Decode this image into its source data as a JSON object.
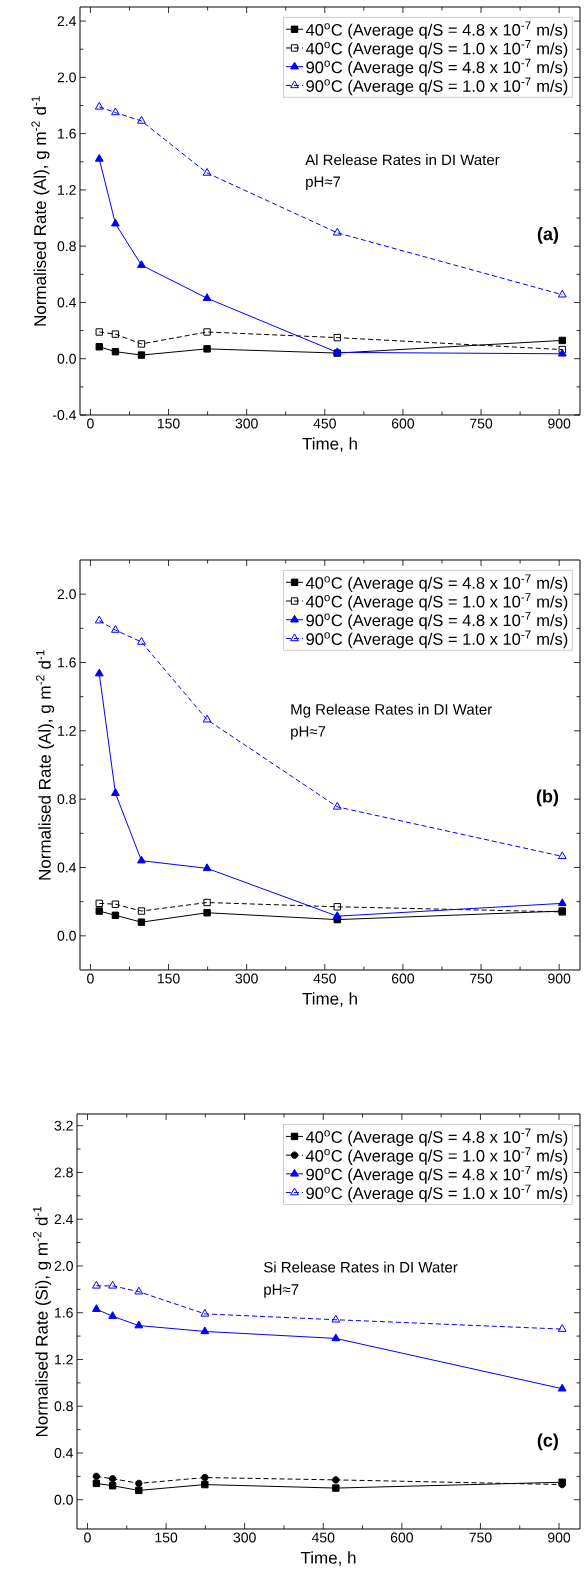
{
  "chart_data": [
    {
      "type": "line",
      "xlabel": "Time, h",
      "ylabel": "Normalised Rate (Al), g m$^{-2}$ d$^{-1}$",
      "xlim": [
        -20,
        940
      ],
      "ylim": [
        -0.4,
        2.5
      ],
      "xticks": [
        0,
        150,
        300,
        450,
        600,
        750,
        900
      ],
      "yticks": [
        {
          "value": -0.4,
          "label": "-0.4"
        },
        {
          "value": 0,
          "label": "0.0"
        },
        {
          "value": 0.4,
          "label": "0.4"
        },
        {
          "value": 0.8,
          "label": "0.8"
        },
        {
          "value": 1.2,
          "label": "1.2"
        },
        {
          "value": 1.6,
          "label": "1.6"
        },
        {
          "value": 2.0,
          "label": "2.0"
        },
        {
          "value": 2.4,
          "label": "2.4"
        }
      ],
      "x": [
        17,
        48,
        98,
        224,
        474,
        906
      ],
      "legend": "top right",
      "grid": false,
      "annotations": [
        "Al Release Rates in DI Water",
        "pH≈7",
        "(a)"
      ],
      "series": [
        {
          "name": "40$^{o}$C (Average q/S = 4.8 x 10$^{-7}$ m/s)",
          "color": "#000000",
          "marker": "square",
          "line_style": "solid",
          "values": [
            0.085,
            0.05,
            0.026,
            0.07,
            0.04,
            0.13
          ]
        },
        {
          "name": "40$^{o}$C (Average q/S = 1.0 x 10$^{-7}$ m/s)",
          "color": "#000000",
          "marker": "square",
          "line_style": "dashed",
          "values": [
            0.19,
            0.175,
            0.105,
            0.19,
            0.15,
            0.065
          ]
        },
        {
          "name": "90$^{o}$C (Average q/S = 4.8 x 10$^{-7}$ m/s)",
          "color": "#0000ff",
          "marker": "triangle",
          "line_style": "solid",
          "values": [
            1.42,
            0.96,
            0.665,
            0.43,
            0.045,
            0.035
          ]
        },
        {
          "name": "90$^{o}$C (Average q/S = 1.0 x 10$^{-7}$ m/s)",
          "color": "#0000ff",
          "marker": "triangle",
          "line_style": "dashed",
          "values": [
            1.79,
            1.75,
            1.69,
            1.32,
            0.895,
            0.455
          ]
        }
      ]
    },
    {
      "type": "line",
      "xlabel": "Time, h",
      "ylabel": "Normalised Rate (Al), g m$^{-2}$ d$^{-1}$",
      "xlim": [
        -20,
        940
      ],
      "ylim": [
        -0.2,
        2.2
      ],
      "xticks": [
        0,
        150,
        300,
        450,
        600,
        750,
        900
      ],
      "yticks": [
        {
          "value": 0,
          "label": "0.0"
        },
        {
          "value": 0.4,
          "label": "0.4"
        },
        {
          "value": 0.8,
          "label": "0.8"
        },
        {
          "value": 1.2,
          "label": "1.2"
        },
        {
          "value": 1.6,
          "label": "1.6"
        },
        {
          "value": 2.0,
          "label": "2.0"
        }
      ],
      "x": [
        17,
        48,
        98,
        224,
        474,
        906
      ],
      "legend": "top right",
      "grid": false,
      "annotations": [
        "Mg Release Rates in DI Water",
        "pH≈7",
        "(b)"
      ],
      "series": [
        {
          "name": "40$^{o}$C (Average q/S = 4.8 x 10$^{-7}$ m/s)",
          "color": "#000000",
          "marker": "square",
          "line_style": "solid",
          "values": [
            0.145,
            0.12,
            0.08,
            0.135,
            0.095,
            0.145
          ]
        },
        {
          "name": "40$^{o}$C (Average q/S = 1.0 x 10$^{-7}$ m/s)",
          "color": "#000000",
          "marker": "square",
          "line_style": "dashed",
          "values": [
            0.19,
            0.185,
            0.145,
            0.195,
            0.17,
            0.14
          ]
        },
        {
          "name": "90$^{o}$C (Average q/S = 4.8 x 10$^{-7}$ m/s)",
          "color": "#0000ff",
          "marker": "triangle",
          "line_style": "solid",
          "values": [
            1.535,
            0.835,
            0.44,
            0.395,
            0.115,
            0.19
          ]
        },
        {
          "name": "90$^{o}$C (Average q/S = 1.0 x 10$^{-7}$ m/s)",
          "color": "#0000ff",
          "marker": "triangle",
          "line_style": "dashed",
          "values": [
            1.845,
            1.79,
            1.72,
            1.265,
            0.755,
            0.465
          ]
        }
      ]
    },
    {
      "type": "line",
      "xlabel": "Time, h",
      "ylabel": "Normalised Rate (Si), g m$^{-2}$ d$^{-1}$",
      "xlim": [
        -20,
        940
      ],
      "ylim": [
        -0.25,
        3.3
      ],
      "xticks": [
        0,
        150,
        300,
        450,
        600,
        750,
        900
      ],
      "yticks": [
        {
          "value": 0,
          "label": "0.0"
        },
        {
          "value": 0.4,
          "label": "0.4"
        },
        {
          "value": 0.8,
          "label": "0.8"
        },
        {
          "value": 1.2,
          "label": "1.2"
        },
        {
          "value": 1.6,
          "label": "1.6"
        },
        {
          "value": 2.0,
          "label": "2.0"
        },
        {
          "value": 2.4,
          "label": "2.4"
        },
        {
          "value": 2.8,
          "label": "2.8"
        },
        {
          "value": 3.2,
          "label": "3.2"
        }
      ],
      "x": [
        17,
        48,
        98,
        224,
        474,
        906
      ],
      "legend": "top right",
      "grid": false,
      "annotations": [
        "Si Release Rates in DI Water",
        "pH≈7",
        "(c)"
      ],
      "series": [
        {
          "name": "40$^{o}$C (Average q/S = 4.8 x 10$^{-7}$ m/s)",
          "color": "#000000",
          "marker": "square",
          "line_style": "solid",
          "values": [
            0.14,
            0.12,
            0.08,
            0.13,
            0.1,
            0.15
          ]
        },
        {
          "name": "40$^{o}$C (Average q/S = 1.0 x 10$^{-7}$ m/s)",
          "color": "#000000",
          "marker": "circle",
          "line_style": "dashed",
          "values": [
            0.2,
            0.18,
            0.14,
            0.19,
            0.17,
            0.13
          ]
        },
        {
          "name": "90$^{o}$C (Average q/S = 4.8 x 10$^{-7}$ m/s)",
          "color": "#0000ff",
          "marker": "triangle",
          "line_style": "solid",
          "values": [
            1.63,
            1.57,
            1.49,
            1.44,
            1.38,
            0.95
          ]
        },
        {
          "name": "90$^{o}$C (Average q/S = 1.0 x 10$^{-7}$ m/s)",
          "color": "#0000ff",
          "marker": "triangle",
          "line_style": "dashed",
          "values": [
            1.83,
            1.83,
            1.78,
            1.59,
            1.54,
            1.46
          ]
        }
      ]
    }
  ]
}
